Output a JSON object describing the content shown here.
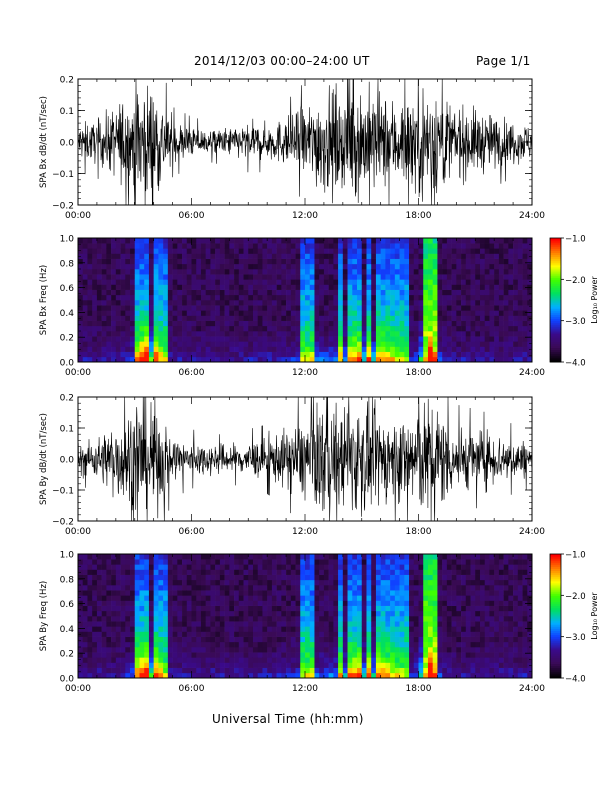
{
  "header": {
    "title": "2014/12/03  00:00–24:00 UT",
    "page": "Page 1/1"
  },
  "xaxis_title": "Universal Time (hh:mm)",
  "colorbar": {
    "label": "Log₁₀ Power",
    "ticks": [
      "−1.0",
      "−2.0",
      "−3.0",
      "−4.0"
    ],
    "tick_values": [
      -1.0,
      -2.0,
      -3.0,
      -4.0
    ],
    "range": [
      -4.0,
      -1.0
    ],
    "colors": [
      "#000000",
      "#3a0a55",
      "#3a0a8a",
      "#1040ff",
      "#00b0ff",
      "#00e060",
      "#40ff00",
      "#ffff00",
      "#ff8000",
      "#ff0000"
    ]
  },
  "chart_data": [
    {
      "type": "line",
      "ylabel": "SPA Bx dB/dt (nT/sec)",
      "xlim": [
        "00:00",
        "24:00"
      ],
      "ylim": [
        -0.2,
        0.2
      ],
      "xticks": [
        "00:00",
        "06:00",
        "12:00",
        "18:00",
        "24:00"
      ],
      "yticks": [
        "0.2",
        "0.1",
        "0.0",
        "−0.1",
        "−0.2"
      ],
      "ytick_values": [
        0.2,
        0.1,
        0.0,
        -0.1,
        -0.2
      ],
      "series": [
        {
          "color": "#000000",
          "x_hours": [
            0,
            1,
            2,
            3,
            3.5,
            4,
            4.5,
            5,
            6,
            7,
            8,
            9,
            10,
            11,
            12,
            13,
            14,
            15,
            16,
            17,
            18,
            18.5,
            19,
            19.5,
            20,
            21,
            22,
            23,
            24
          ],
          "amplitude": [
            0.06,
            0.07,
            0.12,
            0.2,
            0.2,
            0.2,
            0.14,
            0.07,
            0.05,
            0.04,
            0.05,
            0.06,
            0.06,
            0.08,
            0.12,
            0.18,
            0.16,
            0.2,
            0.16,
            0.14,
            0.2,
            0.2,
            0.2,
            0.15,
            0.12,
            0.11,
            0.09,
            0.07,
            0.06
          ]
        }
      ]
    },
    {
      "type": "heatmap",
      "ylabel": "SPA Bx Freq (Hz)",
      "xlim": [
        "00:00",
        "24:00"
      ],
      "ylim": [
        0.0,
        1.0
      ],
      "xticks": [
        "00:00",
        "06:00",
        "12:00",
        "18:00",
        "24:00"
      ],
      "yticks": [
        "1.0",
        "0.8",
        "0.6",
        "0.4",
        "0.2",
        "0.0"
      ],
      "ytick_values": [
        1.0,
        0.8,
        0.6,
        0.4,
        0.2,
        0.0
      ],
      "zlabel": "Log₁₀ Power",
      "zlim": [
        -4.0,
        -1.0
      ]
    },
    {
      "type": "line",
      "ylabel": "SPA By dB/dt (nT/sec)",
      "xlim": [
        "00:00",
        "24:00"
      ],
      "ylim": [
        -0.2,
        0.2
      ],
      "xticks": [
        "00:00",
        "06:00",
        "12:00",
        "18:00",
        "24:00"
      ],
      "yticks": [
        "0.2",
        "0.1",
        "0.0",
        "−0.1",
        "−0.2"
      ],
      "ytick_values": [
        0.2,
        0.1,
        0.0,
        -0.1,
        -0.2
      ],
      "series": [
        {
          "color": "#000000",
          "x_hours": [
            0,
            1,
            2,
            3,
            3.5,
            4,
            4.5,
            5,
            6,
            7,
            8,
            9,
            10,
            11,
            12,
            13,
            14,
            15,
            16,
            17,
            18,
            18.5,
            19,
            19.5,
            20,
            21,
            22,
            23,
            24
          ],
          "amplitude": [
            0.05,
            0.07,
            0.13,
            0.2,
            0.2,
            0.2,
            0.14,
            0.08,
            0.06,
            0.05,
            0.05,
            0.06,
            0.07,
            0.1,
            0.14,
            0.2,
            0.17,
            0.2,
            0.15,
            0.14,
            0.2,
            0.2,
            0.2,
            0.14,
            0.11,
            0.1,
            0.09,
            0.07,
            0.06
          ]
        }
      ]
    },
    {
      "type": "heatmap",
      "ylabel": "SPA By Freq (Hz)",
      "xlim": [
        "00:00",
        "24:00"
      ],
      "ylim": [
        0.0,
        1.0
      ],
      "xticks": [
        "00:00",
        "06:00",
        "12:00",
        "18:00",
        "24:00"
      ],
      "yticks": [
        "1.0",
        "0.8",
        "0.6",
        "0.4",
        "0.2",
        "0.0"
      ],
      "ytick_values": [
        1.0,
        0.8,
        0.6,
        0.4,
        0.2,
        0.0
      ],
      "zlabel": "Log₁₀ Power",
      "zlim": [
        -4.0,
        -1.0
      ]
    }
  ]
}
